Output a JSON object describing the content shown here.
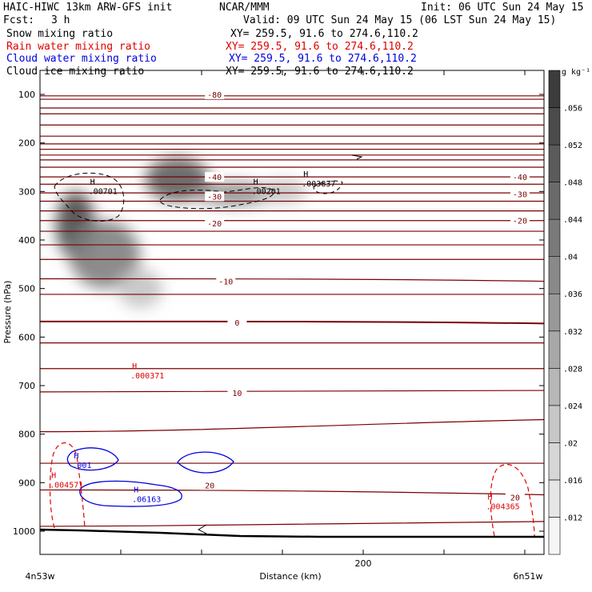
{
  "header": {
    "title": "HAIC-HIWC 13km ARW-GFS init",
    "org": "NCAR/MMM",
    "init": "Init: 06 UTC Sun 24 May 15",
    "fcst_label": "Fcst:",
    "fcst_value": "3 h",
    "valid": "Valid: 09 UTC Sun 24 May 15 (06 LST Sun 24 May 15)"
  },
  "fields": [
    {
      "name": "Snow mixing ratio",
      "xy": "XY= 259.5, 91.6 to 274.6,110.2",
      "color": "#000000"
    },
    {
      "name": "Rain water mixing ratio",
      "xy": "XY= 259.5, 91.6 to 274.6,110.2",
      "color": "#e00000"
    },
    {
      "name": "Cloud water mixing ratio",
      "xy": "XY= 259.5, 91.6 to 274.6,110.2",
      "color": "#0000e0"
    },
    {
      "name": "Cloud ice mixing ratio",
      "xy": "XY= 259.5, 91.6 to 274.6,110.2",
      "color": "#000000"
    }
  ],
  "chart_data": {
    "type": "cross-section",
    "xlabel": "Distance (km)",
    "ylabel": "Pressure (hPa)",
    "x_ticks": [
      0,
      50,
      100,
      150,
      200,
      250,
      300
    ],
    "x_tick_labels": [
      "",
      "",
      "",
      "",
      "200",
      "",
      ""
    ],
    "x_range": [
      0,
      310
    ],
    "y_ticks": [
      100,
      200,
      300,
      400,
      500,
      600,
      700,
      800,
      900,
      1000
    ],
    "y_range": [
      50,
      1050
    ],
    "left_endpoint": "4n53w",
    "right_endpoint": "6n51w",
    "colorbar": {
      "unit": "g kg⁻¹",
      "labels": [
        ".012",
        ".016",
        ".02",
        ".024",
        ".028",
        ".032",
        ".036",
        ".04",
        ".044",
        ".048",
        ".052",
        ".056"
      ],
      "levels": [
        0.008,
        0.012,
        0.016,
        0.02,
        0.024,
        0.028,
        0.032,
        0.036,
        0.04,
        0.044,
        0.048,
        0.052,
        0.056,
        0.06
      ]
    },
    "temperature_labels": [
      {
        "text": "-80",
        "x": 108,
        "p": 100
      },
      {
        "text": "-40",
        "x": 108,
        "p": 270
      },
      {
        "text": "-30",
        "x": 108,
        "p": 310
      },
      {
        "text": "-20",
        "x": 108,
        "p": 365
      },
      {
        "text": "-10",
        "x": 115,
        "p": 485
      },
      {
        "text": "0",
        "x": 122,
        "p": 570
      },
      {
        "text": "10",
        "x": 122,
        "p": 715
      },
      {
        "text": "20",
        "x": 105,
        "p": 905
      },
      {
        "text": "-40",
        "x": 297,
        "p": 270
      },
      {
        "text": "-30",
        "x": 297,
        "p": 305
      },
      {
        "text": "-20",
        "x": 297,
        "p": 360
      },
      {
        "text": "20",
        "x": 294,
        "p": 930
      }
    ],
    "maxima": [
      {
        "text": ".00701",
        "x": 30,
        "p": 295,
        "color": "#000000"
      },
      {
        "text": ".00201",
        "x": 131,
        "p": 295,
        "color": "#000000"
      },
      {
        "text": ".003837",
        "x": 162,
        "p": 280,
        "color": "#000000"
      },
      {
        "text": ".000371",
        "x": 56,
        "p": 675,
        "color": "#e00000"
      },
      {
        "text": ".004571",
        "x": 6,
        "p": 900,
        "color": "#e00000"
      },
      {
        "text": ".004365",
        "x": 276,
        "p": 945,
        "color": "#e00000"
      },
      {
        "text": ".06163",
        "x": 57,
        "p": 930,
        "color": "#0000e0"
      },
      {
        "text": ".001",
        "x": 20,
        "p": 860,
        "color": "#0000e0"
      }
    ],
    "snow_blobs": [
      {
        "x": 22,
        "p": 370,
        "rx": 12,
        "rp": 70,
        "value": 0.056
      },
      {
        "x": 40,
        "p": 430,
        "rx": 22,
        "rp": 70,
        "value": 0.04
      },
      {
        "x": 62,
        "p": 500,
        "rx": 14,
        "rp": 40,
        "value": 0.02
      },
      {
        "x": 85,
        "p": 275,
        "rx": 20,
        "rp": 45,
        "value": 0.05
      },
      {
        "x": 120,
        "p": 305,
        "rx": 25,
        "rp": 25,
        "value": 0.035
      },
      {
        "x": 150,
        "p": 300,
        "rx": 15,
        "rp": 25,
        "value": 0.02
      }
    ],
    "isotherms": [
      {
        "p0": 103,
        "p1": 103,
        "label": "-80"
      },
      {
        "p0": 110,
        "p1": 110
      },
      {
        "p0": 128,
        "p1": 128
      },
      {
        "p0": 140,
        "p1": 140
      },
      {
        "p0": 163,
        "p1": 163
      },
      {
        "p0": 186,
        "p1": 186
      },
      {
        "p0": 202,
        "p1": 202
      },
      {
        "p0": 213,
        "p1": 213
      },
      {
        "p0": 225,
        "p1": 225
      },
      {
        "p0": 235,
        "p1": 235
      },
      {
        "p0": 250,
        "p1": 250
      },
      {
        "p0": 270,
        "p1": 270,
        "label": "-40"
      },
      {
        "p0": 285,
        "p1": 285
      },
      {
        "p0": 303,
        "p1": 303,
        "label": "-30"
      },
      {
        "p0": 320,
        "p1": 320
      },
      {
        "p0": 340,
        "p1": 340
      },
      {
        "p0": 360,
        "p1": 360,
        "label": "-20"
      },
      {
        "p0": 382,
        "p1": 382
      },
      {
        "p0": 410,
        "p1": 410
      },
      {
        "p0": 440,
        "p1": 440
      },
      {
        "p0": 480,
        "p1": 485,
        "label": "-10"
      },
      {
        "p0": 512,
        "p1": 512
      },
      {
        "p0": 568,
        "p1": 572,
        "label": "0"
      },
      {
        "p0": 612,
        "p1": 612
      },
      {
        "p0": 665,
        "p1": 665
      },
      {
        "p0": 713,
        "p1": 710,
        "label": "10"
      },
      {
        "p0": 795,
        "p1": 770
      },
      {
        "p0": 860,
        "p1": 860
      },
      {
        "p0": 915,
        "p1": 925,
        "label": "20"
      },
      {
        "p0": 990,
        "p1": 980
      }
    ]
  }
}
